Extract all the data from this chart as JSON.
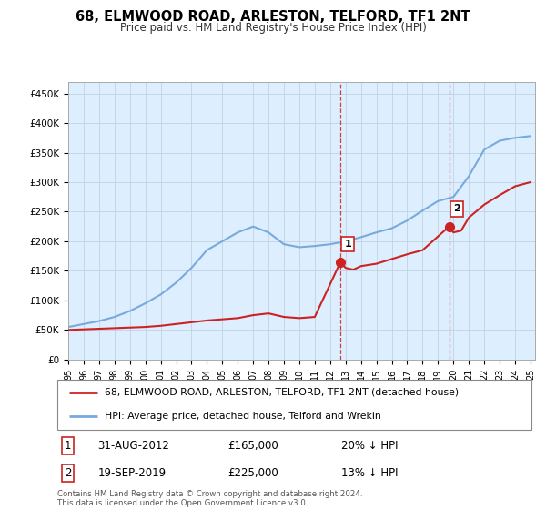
{
  "title": "68, ELMWOOD ROAD, ARLESTON, TELFORD, TF1 2NT",
  "subtitle": "Price paid vs. HM Land Registry's House Price Index (HPI)",
  "ylim": [
    0,
    470000
  ],
  "yticks": [
    0,
    50000,
    100000,
    150000,
    200000,
    250000,
    300000,
    350000,
    400000,
    450000
  ],
  "ytick_labels": [
    "£0",
    "£50K",
    "£100K",
    "£150K",
    "£200K",
    "£250K",
    "£300K",
    "£350K",
    "£400K",
    "£450K"
  ],
  "background_color": "#ffffff",
  "plot_bg_color": "#ddeeff",
  "grid_color": "#bbccdd",
  "hpi_color": "#77aadd",
  "sale_color": "#cc2222",
  "ann1_year": 2012.67,
  "ann1_price": 165000,
  "ann1_label": "1",
  "ann1_text": "31-AUG-2012",
  "ann1_amount": "£165,000",
  "ann1_pct": "20% ↓ HPI",
  "ann2_year": 2019.72,
  "ann2_price": 225000,
  "ann2_label": "2",
  "ann2_text": "19-SEP-2019",
  "ann2_amount": "£225,000",
  "ann2_pct": "13% ↓ HPI",
  "legend_line1": "68, ELMWOOD ROAD, ARLESTON, TELFORD, TF1 2NT (detached house)",
  "legend_line2": "HPI: Average price, detached house, Telford and Wrekin",
  "footer": "Contains HM Land Registry data © Crown copyright and database right 2024.\nThis data is licensed under the Open Government Licence v3.0.",
  "hpi_years": [
    1995,
    1996,
    1997,
    1998,
    1999,
    2000,
    2001,
    2002,
    2003,
    2004,
    2005,
    2006,
    2007,
    2008,
    2009,
    2010,
    2011,
    2012,
    2013,
    2014,
    2015,
    2016,
    2017,
    2018,
    2019,
    2020,
    2021,
    2022,
    2023,
    2024,
    2025
  ],
  "hpi_values": [
    55000,
    60000,
    65000,
    72000,
    82000,
    95000,
    110000,
    130000,
    155000,
    185000,
    200000,
    215000,
    225000,
    215000,
    195000,
    190000,
    192000,
    195000,
    200000,
    207000,
    215000,
    222000,
    235000,
    252000,
    268000,
    275000,
    310000,
    355000,
    370000,
    375000,
    378000
  ],
  "sale_years": [
    1995,
    1996,
    1997,
    1998,
    1999,
    2000,
    2001,
    2002,
    2003,
    2004,
    2005,
    2006,
    2007,
    2008,
    2009,
    2010,
    2011,
    2012.67,
    2013.0,
    2013.5,
    2014,
    2015,
    2016,
    2017,
    2018,
    2019.72,
    2020,
    2020.5,
    2021,
    2022,
    2023,
    2024,
    2025
  ],
  "sale_values": [
    50000,
    51000,
    52000,
    53000,
    54000,
    55000,
    57000,
    60000,
    63000,
    66000,
    68000,
    70000,
    75000,
    78000,
    72000,
    70000,
    72000,
    165000,
    155000,
    152000,
    158000,
    162000,
    170000,
    178000,
    185000,
    225000,
    215000,
    218000,
    240000,
    262000,
    278000,
    293000,
    300000
  ]
}
